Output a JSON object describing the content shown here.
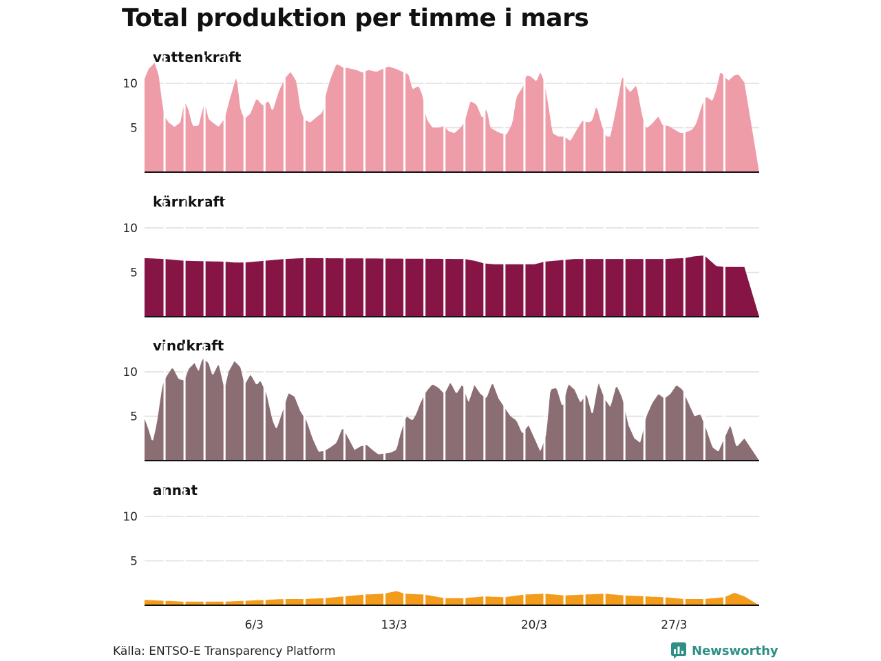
{
  "title": "Total produktion per timme i mars",
  "source": "Källa: ENTSO-E Transparency Platform",
  "brand": {
    "name": "Newsworthy",
    "color": "#2f8f85"
  },
  "chart_data": {
    "type": "area",
    "x_unit": "day of March 2020",
    "x_ticks": [
      {
        "day": 6,
        "label": "6/3"
      },
      {
        "day": 13,
        "label": "13/3"
      },
      {
        "day": 20,
        "label": "20/3"
      },
      {
        "day": 27,
        "label": "27/3"
      }
    ],
    "x_range": [
      1,
      31
    ],
    "y_ticks": [
      5,
      10
    ],
    "ylim": [
      0,
      13
    ],
    "grid": "horizontal",
    "series": [
      {
        "name": "vattenkraft",
        "color": "#ef9ca9",
        "points": [
          [
            1.0,
            10.5
          ],
          [
            1.2,
            11.6
          ],
          [
            1.5,
            12.3
          ],
          [
            1.7,
            11.0
          ],
          [
            1.9,
            7.5
          ],
          [
            2.0,
            6.3
          ],
          [
            2.2,
            5.6
          ],
          [
            2.5,
            5.1
          ],
          [
            2.8,
            5.6
          ],
          [
            3.0,
            8.0
          ],
          [
            3.2,
            7.0
          ],
          [
            3.4,
            5.2
          ],
          [
            3.7,
            5.2
          ],
          [
            4.0,
            7.9
          ],
          [
            4.2,
            6.0
          ],
          [
            4.4,
            5.6
          ],
          [
            4.7,
            5.1
          ],
          [
            5.0,
            6.0
          ],
          [
            5.3,
            8.5
          ],
          [
            5.6,
            10.8
          ],
          [
            5.8,
            7.0
          ],
          [
            6.0,
            6.0
          ],
          [
            6.3,
            6.6
          ],
          [
            6.6,
            8.3
          ],
          [
            6.9,
            7.5
          ],
          [
            7.2,
            8.0
          ],
          [
            7.4,
            6.8
          ],
          [
            7.7,
            9.0
          ],
          [
            8.0,
            10.5
          ],
          [
            8.3,
            11.3
          ],
          [
            8.6,
            10.2
          ],
          [
            8.8,
            7.0
          ],
          [
            9.0,
            5.9
          ],
          [
            9.3,
            5.6
          ],
          [
            9.6,
            6.2
          ],
          [
            9.9,
            6.7
          ],
          [
            10.1,
            9.0
          ],
          [
            10.3,
            10.5
          ],
          [
            10.6,
            12.2
          ],
          [
            10.9,
            11.8
          ],
          [
            11.2,
            11.7
          ],
          [
            11.6,
            11.5
          ],
          [
            11.9,
            11.2
          ],
          [
            12.2,
            11.5
          ],
          [
            12.6,
            11.3
          ],
          [
            12.9,
            11.6
          ],
          [
            13.2,
            11.9
          ],
          [
            13.6,
            11.6
          ],
          [
            13.9,
            11.3
          ],
          [
            14.2,
            11.0
          ],
          [
            14.4,
            9.3
          ],
          [
            14.7,
            9.7
          ],
          [
            14.9,
            8.7
          ],
          [
            15.1,
            6.0
          ],
          [
            15.4,
            5.0
          ],
          [
            15.7,
            5.0
          ],
          [
            16.0,
            5.2
          ],
          [
            16.2,
            4.6
          ],
          [
            16.5,
            4.4
          ],
          [
            16.8,
            5.0
          ],
          [
            17.0,
            5.6
          ],
          [
            17.3,
            8.0
          ],
          [
            17.6,
            7.6
          ],
          [
            17.9,
            6.0
          ],
          [
            18.1,
            7.2
          ],
          [
            18.3,
            5.0
          ],
          [
            18.6,
            4.6
          ],
          [
            18.8,
            4.4
          ],
          [
            19.1,
            4.2
          ],
          [
            19.4,
            5.5
          ],
          [
            19.6,
            8.5
          ],
          [
            19.9,
            9.5
          ],
          [
            20.1,
            10.9
          ],
          [
            20.3,
            10.8
          ],
          [
            20.6,
            10.2
          ],
          [
            20.8,
            11.3
          ],
          [
            21.0,
            10.1
          ],
          [
            21.2,
            7.5
          ],
          [
            21.4,
            4.4
          ],
          [
            21.7,
            4.0
          ],
          [
            22.0,
            4.0
          ],
          [
            22.3,
            3.5
          ],
          [
            22.6,
            4.7
          ],
          [
            22.9,
            5.8
          ],
          [
            23.2,
            5.6
          ],
          [
            23.4,
            5.8
          ],
          [
            23.6,
            7.5
          ],
          [
            23.9,
            5.0
          ],
          [
            24.1,
            4.0
          ],
          [
            24.3,
            4.0
          ],
          [
            24.6,
            7.3
          ],
          [
            24.9,
            10.9
          ],
          [
            25.1,
            9.5
          ],
          [
            25.3,
            9.0
          ],
          [
            25.6,
            9.8
          ],
          [
            25.9,
            6.2
          ],
          [
            26.1,
            4.9
          ],
          [
            26.4,
            5.5
          ],
          [
            26.7,
            6.3
          ],
          [
            26.9,
            5.3
          ],
          [
            27.2,
            5.2
          ],
          [
            27.5,
            4.8
          ],
          [
            27.8,
            4.4
          ],
          [
            28.1,
            4.5
          ],
          [
            28.4,
            4.8
          ],
          [
            28.6,
            5.5
          ],
          [
            28.9,
            7.7
          ],
          [
            29.1,
            8.5
          ],
          [
            29.4,
            8.0
          ],
          [
            29.6,
            9.3
          ],
          [
            29.8,
            11.3
          ],
          [
            30.0,
            10.8
          ],
          [
            30.2,
            10.3
          ],
          [
            30.5,
            10.9
          ],
          [
            30.7,
            11.0
          ],
          [
            31.0,
            10.1
          ]
        ]
      },
      {
        "name": "kärnkraft",
        "color": "#861545",
        "points": [
          [
            1.0,
            6.6
          ],
          [
            2.0,
            6.5
          ],
          [
            3.0,
            6.3
          ],
          [
            5.0,
            6.2
          ],
          [
            5.5,
            6.1
          ],
          [
            6.0,
            6.1
          ],
          [
            6.5,
            6.2
          ],
          [
            7.0,
            6.3
          ],
          [
            7.5,
            6.4
          ],
          [
            8.0,
            6.5
          ],
          [
            9.0,
            6.6
          ],
          [
            17.0,
            6.5
          ],
          [
            17.5,
            6.3
          ],
          [
            18.0,
            6.0
          ],
          [
            18.5,
            5.9
          ],
          [
            19.0,
            5.9
          ],
          [
            20.0,
            5.9
          ],
          [
            20.5,
            5.9
          ],
          [
            21.0,
            6.2
          ],
          [
            21.5,
            6.3
          ],
          [
            22.0,
            6.4
          ],
          [
            22.5,
            6.5
          ],
          [
            23.0,
            6.5
          ],
          [
            26.0,
            6.5
          ],
          [
            27.0,
            6.5
          ],
          [
            28.0,
            6.6
          ],
          [
            28.5,
            6.8
          ],
          [
            29.0,
            6.9
          ],
          [
            29.3,
            6.3
          ],
          [
            29.6,
            5.7
          ],
          [
            30.0,
            5.6
          ],
          [
            31.0,
            5.6
          ]
        ]
      },
      {
        "name": "vindkraft",
        "color": "#8b6e74",
        "points": [
          [
            1.0,
            4.7
          ],
          [
            1.2,
            3.5
          ],
          [
            1.4,
            2.0
          ],
          [
            1.6,
            4.0
          ],
          [
            1.9,
            8.5
          ],
          [
            2.1,
            9.5
          ],
          [
            2.4,
            10.5
          ],
          [
            2.7,
            9.2
          ],
          [
            3.0,
            9.0
          ],
          [
            3.2,
            10.3
          ],
          [
            3.5,
            11.0
          ],
          [
            3.7,
            10.0
          ],
          [
            3.9,
            11.5
          ],
          [
            4.2,
            11.0
          ],
          [
            4.4,
            9.5
          ],
          [
            4.7,
            10.9
          ],
          [
            5.0,
            8.0
          ],
          [
            5.2,
            10.0
          ],
          [
            5.5,
            11.2
          ],
          [
            5.8,
            10.5
          ],
          [
            6.0,
            8.5
          ],
          [
            6.3,
            9.7
          ],
          [
            6.6,
            8.5
          ],
          [
            6.8,
            9.0
          ],
          [
            7.1,
            7.5
          ],
          [
            7.4,
            4.5
          ],
          [
            7.6,
            3.5
          ],
          [
            7.9,
            5.5
          ],
          [
            8.2,
            7.6
          ],
          [
            8.5,
            7.2
          ],
          [
            8.8,
            5.5
          ],
          [
            9.1,
            4.5
          ],
          [
            9.4,
            2.5
          ],
          [
            9.7,
            1.0
          ],
          [
            10.0,
            1.1
          ],
          [
            10.3,
            1.5
          ],
          [
            10.6,
            2.0
          ],
          [
            10.9,
            3.7
          ],
          [
            11.2,
            2.5
          ],
          [
            11.5,
            1.2
          ],
          [
            11.8,
            1.6
          ],
          [
            12.1,
            1.8
          ],
          [
            12.4,
            1.2
          ],
          [
            12.7,
            0.7
          ],
          [
            13.0,
            0.8
          ],
          [
            13.3,
            0.9
          ],
          [
            13.6,
            1.2
          ],
          [
            13.8,
            3.0
          ],
          [
            14.1,
            5.0
          ],
          [
            14.4,
            4.5
          ],
          [
            14.6,
            5.3
          ],
          [
            14.8,
            6.5
          ],
          [
            15.1,
            7.8
          ],
          [
            15.4,
            8.6
          ],
          [
            15.7,
            8.2
          ],
          [
            16.0,
            7.5
          ],
          [
            16.3,
            8.8
          ],
          [
            16.6,
            7.5
          ],
          [
            16.9,
            8.6
          ],
          [
            17.2,
            6.5
          ],
          [
            17.5,
            8.5
          ],
          [
            17.8,
            7.5
          ],
          [
            18.1,
            7.0
          ],
          [
            18.4,
            8.8
          ],
          [
            18.7,
            7.0
          ],
          [
            19.0,
            6.0
          ],
          [
            19.3,
            5.0
          ],
          [
            19.6,
            4.5
          ],
          [
            19.9,
            3.0
          ],
          [
            20.2,
            4.0
          ],
          [
            20.5,
            2.5
          ],
          [
            20.8,
            1.0
          ],
          [
            21.1,
            3.0
          ],
          [
            21.3,
            8.0
          ],
          [
            21.6,
            8.2
          ],
          [
            21.9,
            6.0
          ],
          [
            22.2,
            8.6
          ],
          [
            22.5,
            8.0
          ],
          [
            22.8,
            6.5
          ],
          [
            23.1,
            7.5
          ],
          [
            23.4,
            5.0
          ],
          [
            23.7,
            8.8
          ],
          [
            24.0,
            7.0
          ],
          [
            24.3,
            6.0
          ],
          [
            24.6,
            8.5
          ],
          [
            24.9,
            7.0
          ],
          [
            25.2,
            4.0
          ],
          [
            25.5,
            2.5
          ],
          [
            25.8,
            2.0
          ],
          [
            26.1,
            5.0
          ],
          [
            26.4,
            6.5
          ],
          [
            26.7,
            7.5
          ],
          [
            27.0,
            7.0
          ],
          [
            27.3,
            7.5
          ],
          [
            27.6,
            8.5
          ],
          [
            27.9,
            8.0
          ],
          [
            28.2,
            6.5
          ],
          [
            28.5,
            5.0
          ],
          [
            28.8,
            5.2
          ],
          [
            29.1,
            3.5
          ],
          [
            29.4,
            1.5
          ],
          [
            29.7,
            1.0
          ],
          [
            30.0,
            2.5
          ],
          [
            30.3,
            4.0
          ],
          [
            30.6,
            1.5
          ],
          [
            31.0,
            2.5
          ]
        ]
      },
      {
        "name": "annat",
        "color": "#f39c1b",
        "points": [
          [
            1.0,
            0.6
          ],
          [
            2.0,
            0.5
          ],
          [
            3.0,
            0.4
          ],
          [
            4.0,
            0.4
          ],
          [
            5.0,
            0.4
          ],
          [
            6.0,
            0.5
          ],
          [
            7.0,
            0.6
          ],
          [
            8.0,
            0.7
          ],
          [
            9.0,
            0.7
          ],
          [
            10.0,
            0.8
          ],
          [
            11.0,
            1.0
          ],
          [
            12.0,
            1.2
          ],
          [
            13.0,
            1.3
          ],
          [
            13.6,
            1.6
          ],
          [
            14.0,
            1.3
          ],
          [
            15.0,
            1.2
          ],
          [
            16.0,
            0.8
          ],
          [
            17.0,
            0.8
          ],
          [
            18.0,
            1.0
          ],
          [
            19.0,
            0.9
          ],
          [
            20.0,
            1.2
          ],
          [
            21.0,
            1.3
          ],
          [
            22.0,
            1.1
          ],
          [
            23.0,
            1.2
          ],
          [
            24.0,
            1.3
          ],
          [
            25.0,
            1.1
          ],
          [
            26.0,
            1.0
          ],
          [
            27.0,
            0.9
          ],
          [
            28.0,
            0.7
          ],
          [
            29.0,
            0.7
          ],
          [
            30.0,
            0.9
          ],
          [
            30.5,
            1.4
          ],
          [
            31.0,
            1.0
          ]
        ]
      }
    ]
  }
}
